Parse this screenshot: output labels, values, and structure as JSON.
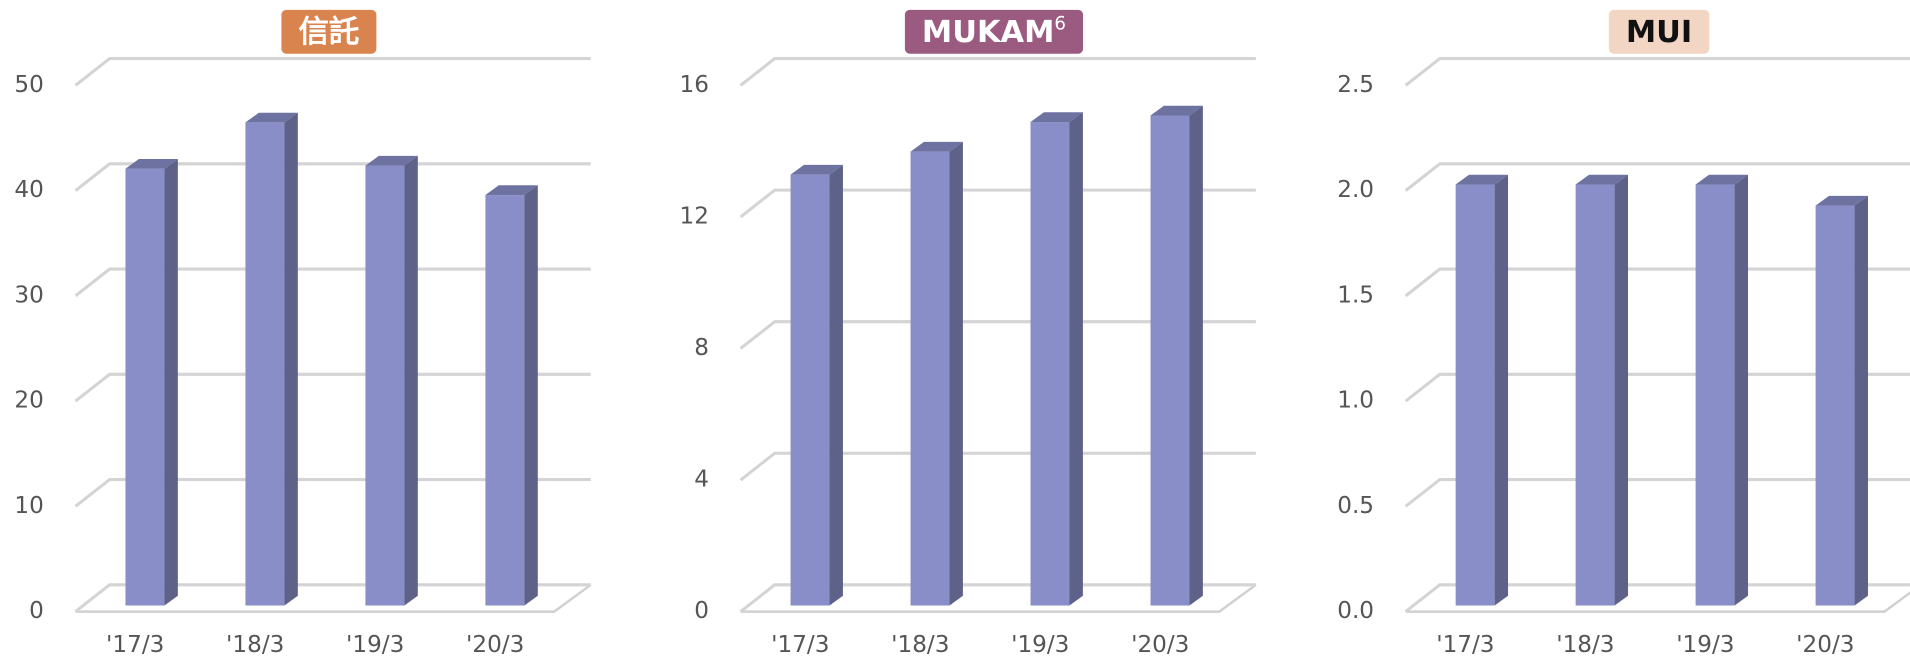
{
  "chart_data": [
    {
      "type": "bar",
      "title": "信託",
      "title_color": "#d9834e",
      "title_text_color": "#ffffff",
      "color": "#8a8ec8",
      "categories": [
        "'17/3",
        "'18/3",
        "'19/3",
        "'20/3"
      ],
      "values": [
        41.5,
        45.9,
        41.8,
        39.0
      ],
      "ylim": [
        0,
        50
      ],
      "yticks": [
        0,
        10,
        20,
        30,
        40,
        50
      ],
      "grid": true
    },
    {
      "type": "bar",
      "title": "MUKAM",
      "title_superscript": "6",
      "title_color": "#9b5b80",
      "title_text_color": "#ffffff",
      "color": "#8a8ec8",
      "categories": [
        "'17/3",
        "'18/3",
        "'19/3",
        "'20/3"
      ],
      "values": [
        13.1,
        13.8,
        14.7,
        14.9
      ],
      "ylim": [
        0,
        16
      ],
      "yticks": [
        0,
        4,
        8,
        12,
        16
      ],
      "grid": true
    },
    {
      "type": "bar",
      "title": "MUI",
      "title_color": "#f3d5c4",
      "title_text_color": "#111111",
      "color": "#8a8ec8",
      "categories": [
        "'17/3",
        "'18/3",
        "'19/3",
        "'20/3"
      ],
      "values": [
        2.0,
        2.0,
        2.0,
        1.9
      ],
      "ylim": [
        0,
        2.5
      ],
      "yticks": [
        {
          "value": 0,
          "label": "0.0"
        },
        {
          "value": 0.5,
          "label": "0.5"
        },
        {
          "value": 1,
          "label": "1.0"
        },
        {
          "value": 1.5,
          "label": "1.5"
        },
        {
          "value": 2,
          "label": "2.0"
        },
        {
          "value": 2.5,
          "label": "2.5"
        }
      ],
      "grid": true
    }
  ]
}
